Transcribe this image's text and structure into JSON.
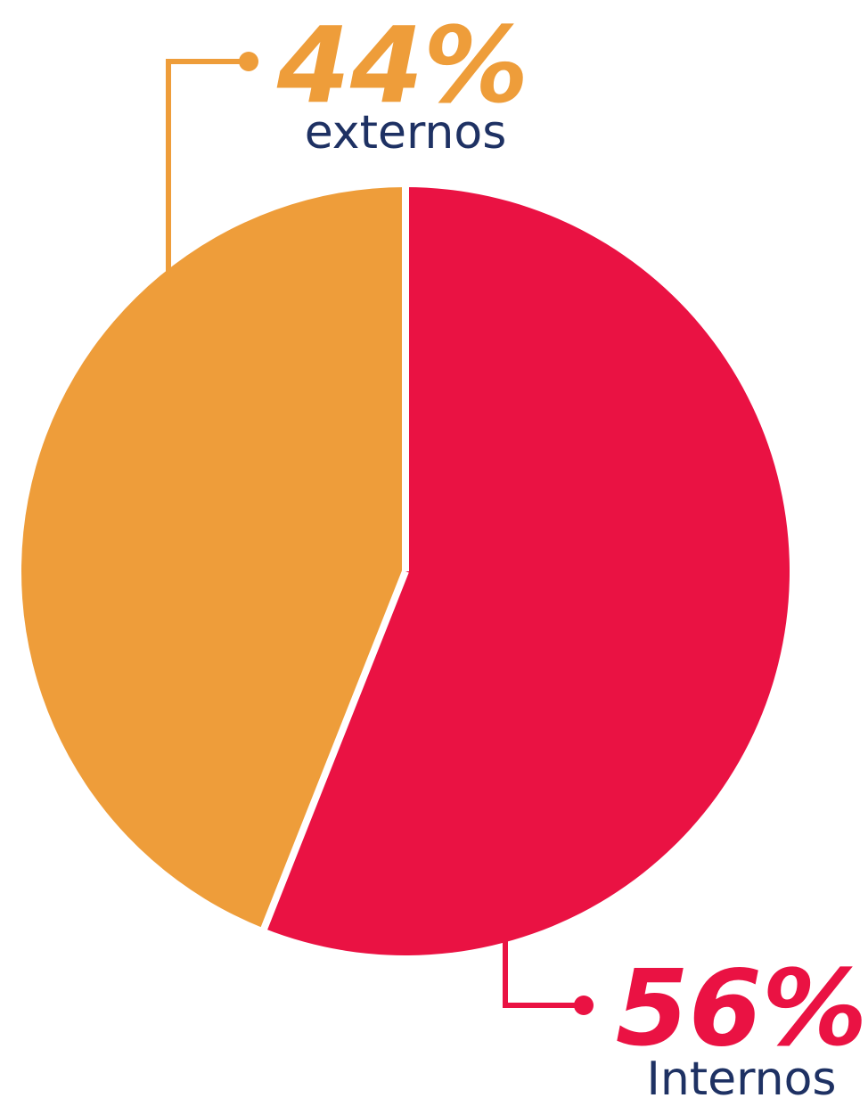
{
  "chart_data": {
    "type": "pie",
    "slices": [
      {
        "label": "externos",
        "value_label": "44%",
        "value": 44,
        "color": "#EE9D3A"
      },
      {
        "label": "Internos",
        "value_label": "56%",
        "value": 56,
        "color": "#EA1243"
      }
    ]
  },
  "colors": {
    "text_dark": "#1E3163",
    "background": "#FFFFFF"
  }
}
